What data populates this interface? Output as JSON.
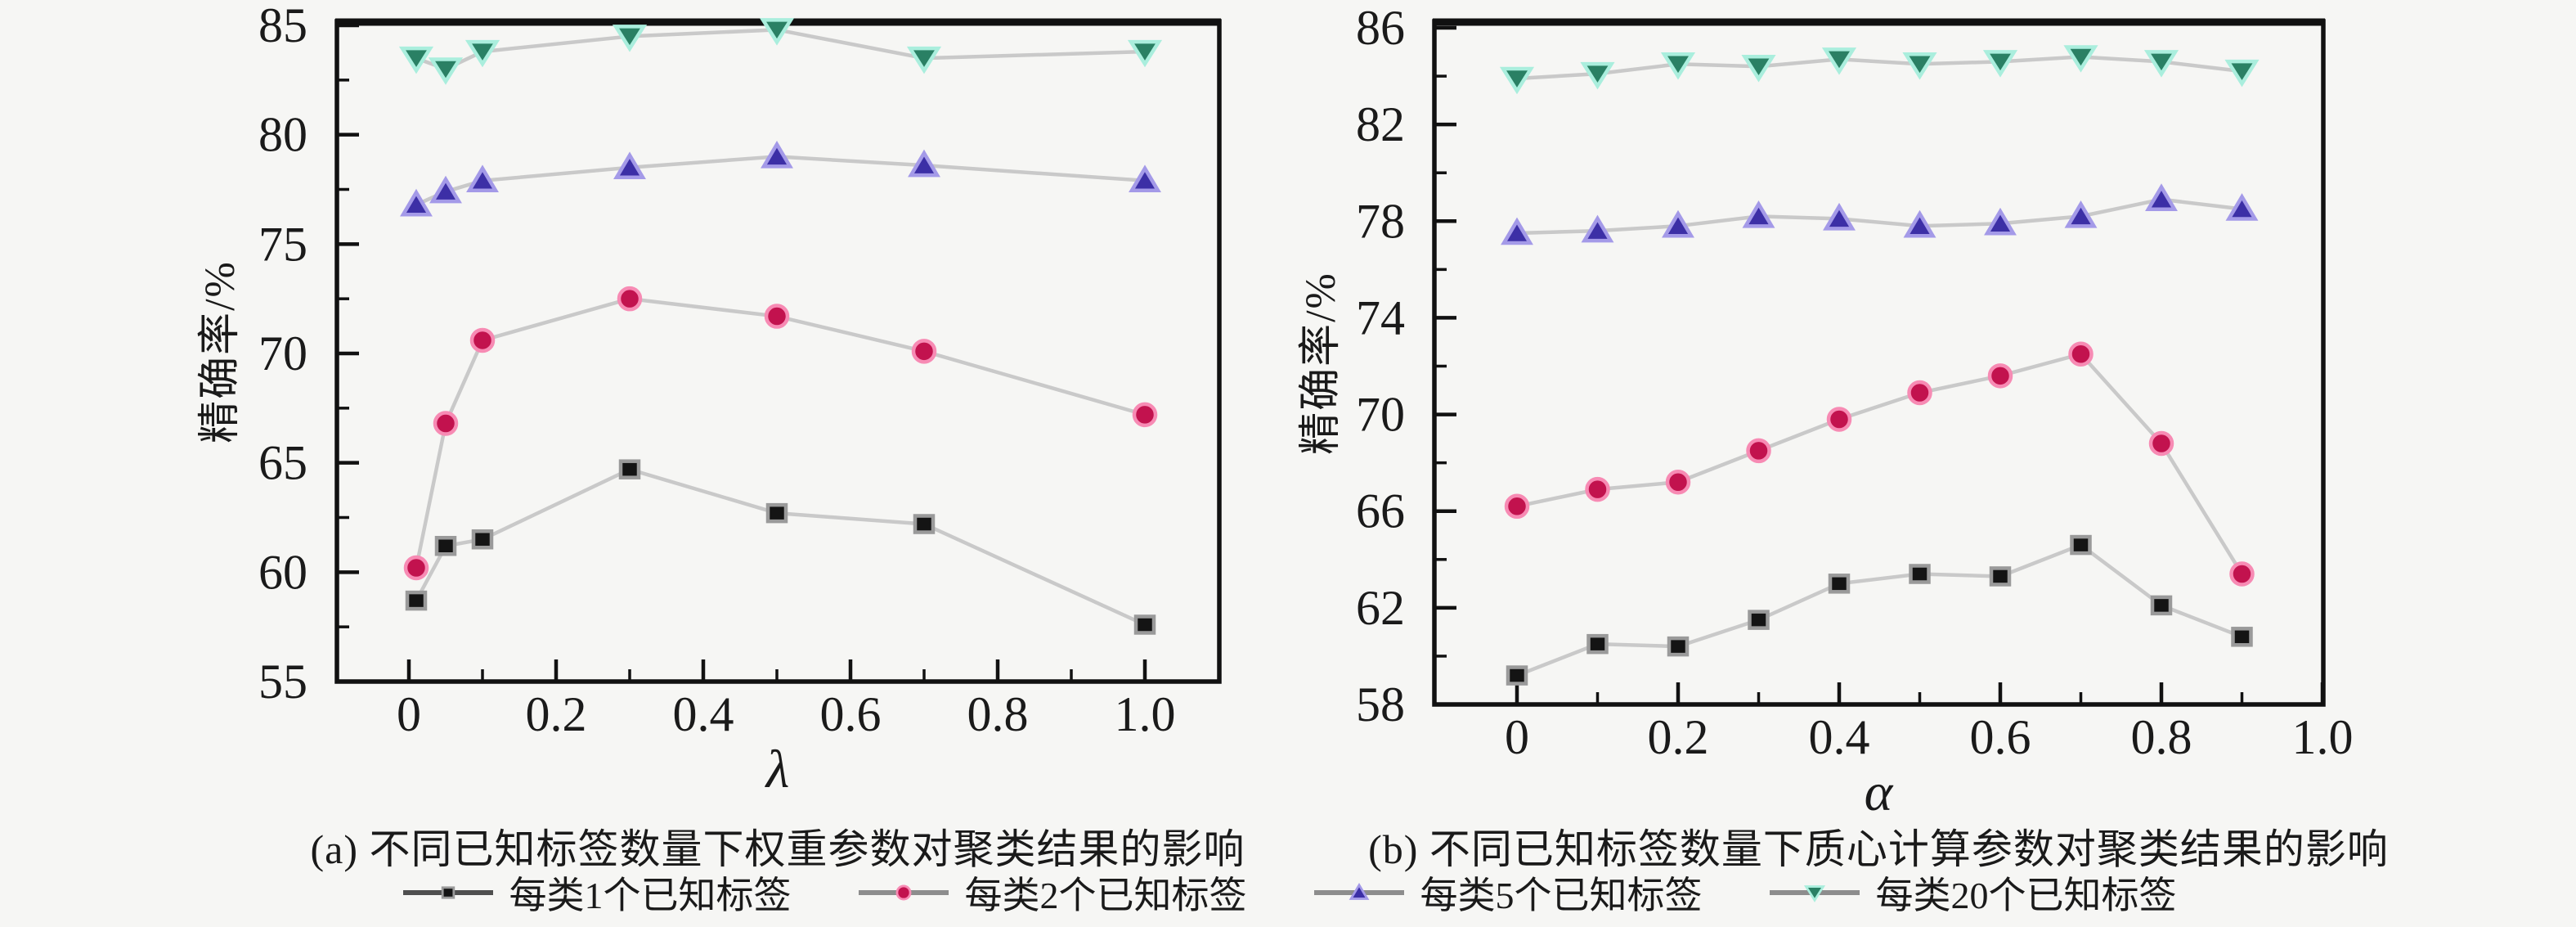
{
  "figure": {
    "background": "#f6f6f4",
    "axis_color": "#111111",
    "line_color": "#c9c9c9",
    "text_color": "#1a1a1a"
  },
  "legend": {
    "items": [
      {
        "label": "每类1个已知标签",
        "marker": "square",
        "color": "#141414",
        "halo": "#9a9a9a",
        "legend_line": "#4f4f4f"
      },
      {
        "label": "每类2个已知标签",
        "marker": "circle",
        "color": "#c2124e",
        "halo": "#f78bb4",
        "legend_line": "#8d8d8d"
      },
      {
        "label": "每类5个已知标签",
        "marker": "triangle-up",
        "color": "#3c2fa6",
        "halo": "#a49ae8",
        "legend_line": "#8d8d8d"
      },
      {
        "label": "每类20个已知标签",
        "marker": "triangle-down",
        "color": "#2a8064",
        "halo": "#aaeedd",
        "legend_line": "#8d8d8d"
      }
    ]
  },
  "chart_data": [
    {
      "id": "a",
      "type": "line",
      "title": "(a) 不同已知标签数量下权重参数对聚类结果的影响",
      "xlabel": "λ",
      "ylabel": "精确率/%",
      "grid": false,
      "legend_position": "bottom",
      "xlim": [
        -0.098,
        1.101
      ],
      "ylim": [
        55,
        85
      ],
      "x_ticks": [
        "0",
        "0.2",
        "0.4",
        "0.6",
        "0.8",
        "1.0"
      ],
      "x_tick_values": [
        0,
        0.2,
        0.4,
        0.6,
        0.8,
        1.0
      ],
      "x_minor_step": 0.1,
      "y_ticks": [
        55,
        60,
        65,
        70,
        75,
        80,
        85
      ],
      "y_minor_step": 2.5,
      "x": [
        0.01,
        0.05,
        0.1,
        0.3,
        0.5,
        0.7,
        1.0
      ],
      "series": [
        {
          "name": "每类1个已知标签",
          "values": [
            58.7,
            61.2,
            61.5,
            64.7,
            62.7,
            62.2,
            57.6
          ]
        },
        {
          "name": "每类2个已知标签",
          "values": [
            60.2,
            66.8,
            70.6,
            72.5,
            71.7,
            70.1,
            67.2
          ]
        },
        {
          "name": "每类5个已知标签",
          "values": [
            76.8,
            77.4,
            77.9,
            78.5,
            79.0,
            78.6,
            77.9
          ]
        },
        {
          "name": "每类20个已知标签",
          "values": [
            83.5,
            83.0,
            83.8,
            84.5,
            84.8,
            83.5,
            83.8
          ]
        }
      ]
    },
    {
      "id": "b",
      "type": "line",
      "title": "(b) 不同已知标签数量下质心计算参数对聚类结果的影响",
      "xlabel": "α",
      "ylabel": "精确率/%",
      "grid": false,
      "legend_position": "bottom",
      "xlim": [
        -0.1025,
        1.0
      ],
      "ylim": [
        58,
        86
      ],
      "x_ticks": [
        "0",
        "0.2",
        "0.4",
        "0.6",
        "0.8",
        "1.0"
      ],
      "x_tick_values": [
        0,
        0.2,
        0.4,
        0.6,
        0.8,
        1.0
      ],
      "x_minor_step": 0.1,
      "y_ticks": [
        58,
        62,
        66,
        70,
        74,
        78,
        82,
        86
      ],
      "y_minor_step": 2,
      "x": [
        0,
        0.1,
        0.2,
        0.3,
        0.4,
        0.5,
        0.6,
        0.7,
        0.8,
        0.9
      ],
      "series": [
        {
          "name": "每类1个已知标签",
          "values": [
            59.2,
            60.5,
            60.4,
            61.5,
            63.0,
            63.4,
            63.3,
            64.6,
            62.1,
            60.8
          ]
        },
        {
          "name": "每类2个已知标签",
          "values": [
            66.2,
            66.9,
            67.2,
            68.5,
            69.8,
            70.9,
            71.6,
            72.5,
            68.8,
            63.4
          ]
        },
        {
          "name": "每类5个已知标签",
          "values": [
            77.5,
            77.6,
            77.8,
            78.2,
            78.1,
            77.8,
            77.9,
            78.2,
            78.9,
            78.5
          ]
        },
        {
          "name": "每类20个已知标签",
          "values": [
            83.9,
            84.1,
            84.5,
            84.4,
            84.7,
            84.5,
            84.6,
            84.8,
            84.6,
            84.2
          ]
        }
      ]
    }
  ]
}
